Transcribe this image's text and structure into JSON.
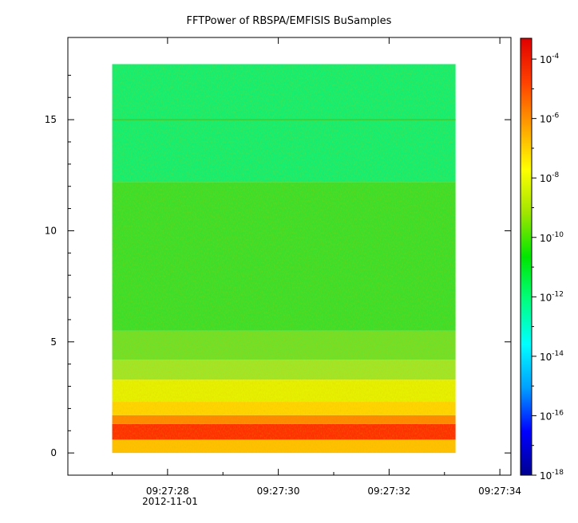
{
  "chart_data": {
    "type": "heatmap",
    "title": "FFTPower of RBSPA/EMFISIS  BuSamples",
    "xlabel": "",
    "ylabel": "",
    "x_ticks": [
      "09:27:28",
      "09:27:30",
      "09:27:32",
      "09:27:34"
    ],
    "x_date_label": "2012-11-01",
    "x_range_seconds": [
      26.2,
      34.2
    ],
    "data_x_range_seconds": [
      27.0,
      33.2
    ],
    "y_ticks": [
      0,
      5,
      10,
      15
    ],
    "ylim": [
      -1,
      18.7
    ],
    "data_y_range": [
      0,
      17.5
    ],
    "colorbar": {
      "scale": "log",
      "range_exp": [
        -18,
        -3.3
      ],
      "tick_base": "10",
      "tick_exponents": [
        -4,
        -6,
        -8,
        -10,
        -12,
        -14,
        -16,
        -18
      ],
      "colors": [
        "#00008f",
        "#0000ff",
        "#00a0ff",
        "#00ffff",
        "#00ff80",
        "#00e600",
        "#a0e600",
        "#ffff00",
        "#ffa000",
        "#ff4000",
        "#e00000"
      ]
    },
    "bands": [
      {
        "y": [
          0.0,
          0.6
        ],
        "level": -6.8,
        "color": "#ffc000"
      },
      {
        "y": [
          0.6,
          1.3
        ],
        "level": -5.2,
        "color": "#ff3000"
      },
      {
        "y": [
          1.3,
          1.7
        ],
        "level": -6.6,
        "color": "#ff8800"
      },
      {
        "y": [
          1.7,
          2.3
        ],
        "level": -7.4,
        "color": "#ffd400"
      },
      {
        "y": [
          2.3,
          3.3
        ],
        "level": -8.2,
        "color": "#e6f000"
      },
      {
        "y": [
          3.3,
          4.2
        ],
        "level": -9.2,
        "color": "#a0e628"
      },
      {
        "y": [
          4.2,
          5.5
        ],
        "level": -9.8,
        "color": "#70e028"
      },
      {
        "y": [
          5.5,
          12.2
        ],
        "level": -10.4,
        "color": "#3cde2a"
      },
      {
        "y": [
          12.2,
          17.5
        ],
        "level": -11.6,
        "color": "#14ee70"
      }
    ],
    "line_feature": {
      "y": 15.0,
      "level": -10.2
    }
  }
}
